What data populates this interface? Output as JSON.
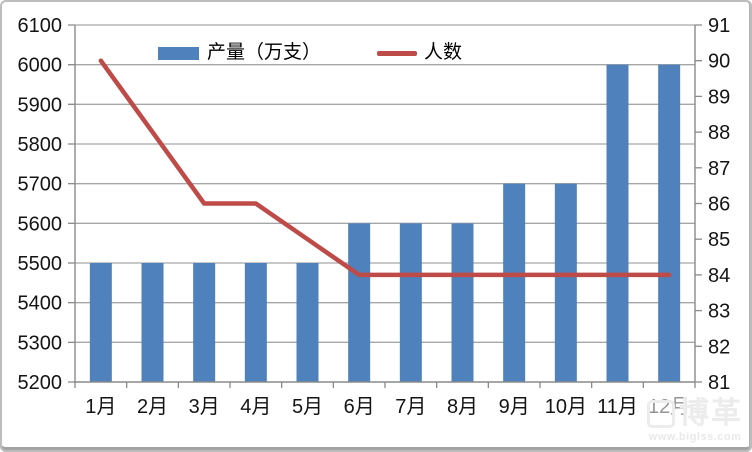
{
  "watermark": {
    "logo_text": "博革",
    "site_text": "www.biglss.com"
  },
  "chart_data": {
    "type": "bar",
    "categories": [
      "1月",
      "2月",
      "3月",
      "4月",
      "5月",
      "6月",
      "7月",
      "8月",
      "9月",
      "10月",
      "11月",
      "12月"
    ],
    "series": [
      {
        "name": "产量（万支）",
        "type": "bar",
        "axis": "left",
        "color": "#4f81bd",
        "values": [
          5500,
          5500,
          5500,
          5500,
          5500,
          5600,
          5600,
          5600,
          5700,
          5700,
          6000,
          6000
        ]
      },
      {
        "name": "人数",
        "type": "line",
        "axis": "right",
        "color": "#be4b48",
        "values": [
          90,
          88,
          86,
          86,
          85,
          84,
          84,
          84,
          84,
          84,
          84,
          84
        ]
      }
    ],
    "left_axis": {
      "min": 5200,
      "max": 6100,
      "step": 100,
      "tick_labels": [
        "5200",
        "5300",
        "5400",
        "5500",
        "5600",
        "5700",
        "5800",
        "5900",
        "6000",
        "6100"
      ]
    },
    "right_axis": {
      "min": 81,
      "max": 91,
      "step": 1,
      "tick_labels": [
        "81",
        "82",
        "83",
        "84",
        "85",
        "86",
        "87",
        "88",
        "89",
        "90",
        "91"
      ]
    },
    "grid": true,
    "legend_position": "top-center",
    "colors": {
      "grid": "#a6a6a6",
      "axis": "#8a8a8a",
      "text": "#141414"
    }
  }
}
